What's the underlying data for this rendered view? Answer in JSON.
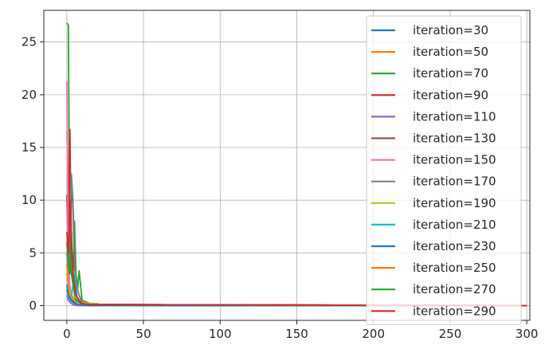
{
  "chart_data": {
    "type": "line",
    "title": "",
    "xlabel": "",
    "ylabel": "",
    "xlim": [
      -15,
      302
    ],
    "ylim": [
      -1.4,
      28
    ],
    "grid": true,
    "legend_placement": "upper-right",
    "x_ticks": [
      0,
      50,
      100,
      150,
      200,
      250,
      300
    ],
    "x_tick_labels": [
      "0",
      "50",
      "100",
      "150",
      "200",
      "250",
      "300"
    ],
    "y_ticks": [
      0,
      5,
      10,
      15,
      20,
      25
    ],
    "y_tick_labels": [
      "0",
      "5",
      "10",
      "15",
      "20",
      "25"
    ],
    "series": [
      {
        "name": "iteration=30",
        "color": "#1f77b4",
        "x": [
          0,
          1,
          2,
          3,
          4,
          5,
          6,
          8,
          10,
          15,
          20,
          300
        ],
        "y": [
          2.0,
          1.0,
          0.6,
          0.4,
          0.3,
          0.2,
          0.1,
          0.05,
          0.02,
          0,
          0,
          0
        ]
      },
      {
        "name": "iteration=50",
        "color": "#ff7f0e",
        "x": [
          0,
          1,
          2,
          3,
          4,
          5,
          6,
          8,
          10,
          15,
          20,
          300
        ],
        "y": [
          16.5,
          12.5,
          8.0,
          5.0,
          3.0,
          1.5,
          1.0,
          0.5,
          0.3,
          0.2,
          0.1,
          0
        ]
      },
      {
        "name": "iteration=70",
        "color": "#2ca02c",
        "x": [
          0,
          1,
          2,
          3,
          4,
          5,
          6,
          7,
          8,
          10,
          15,
          20,
          300
        ],
        "y": [
          26.8,
          26.6,
          5.0,
          3.0,
          2.0,
          8.0,
          3.0,
          1.5,
          3.3,
          0.5,
          0.2,
          0.1,
          0
        ]
      },
      {
        "name": "iteration=90",
        "color": "#d62728",
        "x": [
          0,
          1,
          2,
          3,
          4,
          5,
          6,
          8,
          10,
          15,
          300
        ],
        "y": [
          10.5,
          6.0,
          16.7,
          5.0,
          3.0,
          2.0,
          1.0,
          0.5,
          0.2,
          0.1,
          0
        ]
      },
      {
        "name": "iteration=110",
        "color": "#9467bd",
        "x": [
          0,
          1,
          2,
          3,
          4,
          5,
          6,
          8,
          10,
          15,
          300
        ],
        "y": [
          1.0,
          0.5,
          0.3,
          0.2,
          0.1,
          0.05,
          0.02,
          0,
          0,
          0,
          0
        ]
      },
      {
        "name": "iteration=130",
        "color": "#8c564b",
        "x": [
          0,
          1,
          2,
          3,
          4,
          5,
          6,
          8,
          10,
          15,
          300
        ],
        "y": [
          3.0,
          2.0,
          4.0,
          12.0,
          9.0,
          4.0,
          2.0,
          1.0,
          0.3,
          0.1,
          0
        ]
      },
      {
        "name": "iteration=150",
        "color": "#e377c2",
        "x": [
          0,
          1,
          2,
          3,
          4,
          5,
          6,
          8,
          10,
          15,
          300
        ],
        "y": [
          21.3,
          4.0,
          2.0,
          1.0,
          0.5,
          0.3,
          0.2,
          0.1,
          0,
          0,
          0
        ]
      },
      {
        "name": "iteration=170",
        "color": "#7f7f7f",
        "x": [
          0,
          1,
          2,
          3,
          4,
          5,
          6,
          8,
          10,
          15,
          300
        ],
        "y": [
          5.0,
          3.0,
          8.0,
          12.5,
          10.0,
          5.0,
          2.0,
          1.0,
          0.3,
          0.1,
          0
        ]
      },
      {
        "name": "iteration=190",
        "color": "#bcbd22",
        "x": [
          0,
          1,
          2,
          3,
          4,
          5,
          6,
          8,
          10,
          15,
          20,
          22,
          300
        ],
        "y": [
          3.0,
          2.0,
          1.5,
          1.0,
          0.8,
          0.6,
          0.5,
          0.4,
          0.3,
          0.2,
          0.2,
          0,
          0
        ]
      },
      {
        "name": "iteration=210",
        "color": "#17becf",
        "x": [
          0,
          1,
          2,
          3,
          4,
          5,
          6,
          7,
          8,
          10,
          15,
          300
        ],
        "y": [
          1.0,
          0.8,
          0.5,
          0.7,
          2.0,
          3.0,
          1.5,
          0.5,
          0.3,
          0.1,
          0,
          0
        ]
      },
      {
        "name": "iteration=230",
        "color": "#1f77b4",
        "x": [
          0,
          1,
          2,
          3,
          4,
          5,
          6,
          8,
          10,
          15,
          300
        ],
        "y": [
          1.5,
          1.0,
          0.8,
          0.5,
          0.4,
          0.3,
          0.2,
          0.1,
          0.05,
          0,
          0
        ]
      },
      {
        "name": "iteration=250",
        "color": "#ff7f0e",
        "x": [
          0,
          1,
          2,
          3,
          4,
          5,
          6,
          8,
          10,
          15,
          300
        ],
        "y": [
          4.0,
          2.0,
          1.0,
          0.8,
          0.6,
          0.5,
          0.4,
          0.3,
          0.2,
          0.1,
          0
        ]
      },
      {
        "name": "iteration=270",
        "color": "#2ca02c",
        "x": [
          0,
          1,
          2,
          3,
          4,
          5,
          6,
          8,
          10,
          15,
          300
        ],
        "y": [
          6.0,
          4.0,
          3.0,
          7.0,
          2.5,
          1.0,
          0.5,
          0.3,
          0.2,
          0.1,
          0
        ]
      },
      {
        "name": "iteration=290",
        "color": "#d62728",
        "x": [
          0,
          1,
          2,
          3,
          4,
          5,
          6,
          8,
          10,
          15,
          300
        ],
        "y": [
          7.0,
          5.0,
          10.0,
          6.0,
          3.0,
          2.0,
          1.0,
          0.5,
          0.2,
          0.1,
          0
        ]
      }
    ]
  }
}
